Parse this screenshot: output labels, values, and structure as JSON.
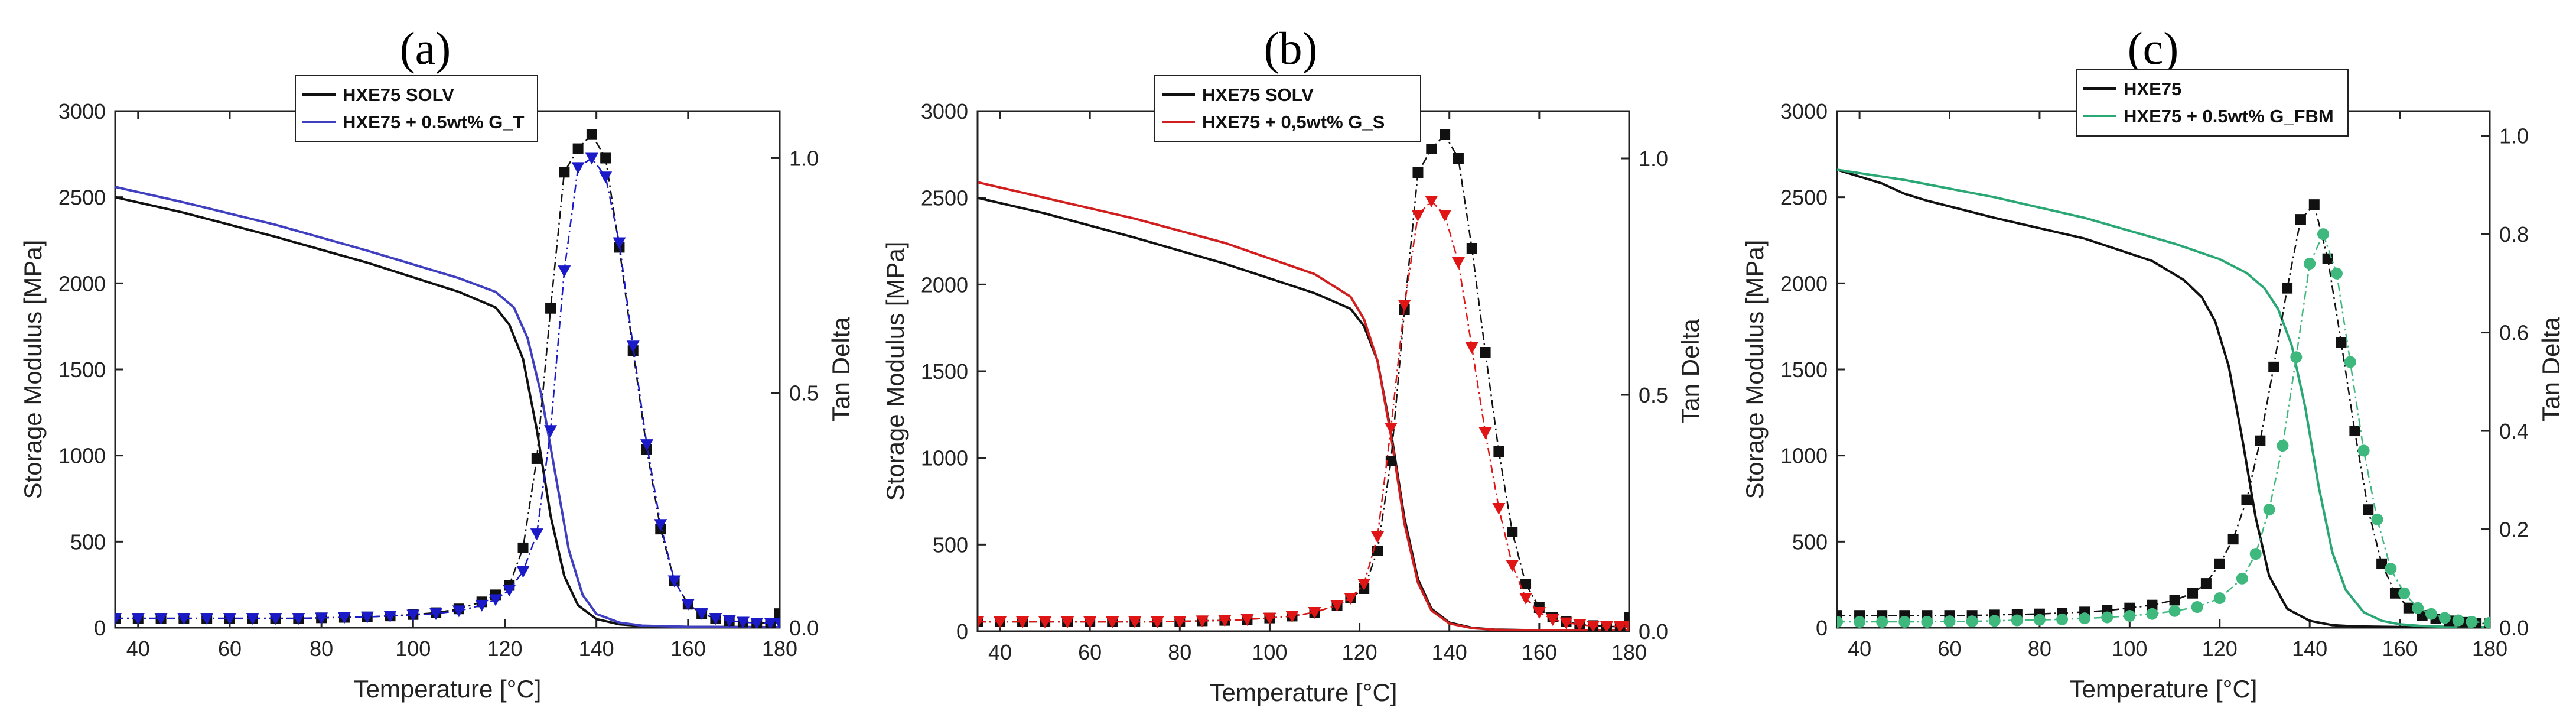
{
  "chart_data": [
    {
      "type": "line",
      "panel_label": "(a)",
      "xlabel": "Temperature [°C]",
      "ylabel": "Storage Modulus [MPa]",
      "y2label": "Tan Delta",
      "xlim": [
        35,
        180
      ],
      "ylim": [
        0,
        3000
      ],
      "y2lim": [
        0,
        1.1
      ],
      "xticks": [
        "40",
        "60",
        "80",
        "100",
        "120",
        "140",
        "160",
        "180"
      ],
      "yticks": [
        "0",
        "500",
        "1000",
        "1500",
        "2000",
        "2500",
        "3000"
      ],
      "y2ticks": [
        "0.0",
        "0.5",
        "1.0"
      ],
      "x_ticks": [
        40,
        60,
        80,
        100,
        120,
        140,
        160,
        180
      ],
      "y_ticks": [
        0,
        500,
        1000,
        1500,
        2000,
        2500,
        3000
      ],
      "y2_ticks": [
        0,
        0.5,
        1.0
      ],
      "legend": {
        "position": "top-center",
        "entries": [
          "HXE75 SOLV",
          "HXE75 + 0.5wt% G_T"
        ],
        "colors": [
          "#111111",
          "#3f3fbf"
        ]
      },
      "series": [
        {
          "name": "HXE75 SOLV",
          "axis": "left",
          "style": "line",
          "color": "#111111",
          "x": [
            35,
            50,
            70,
            90,
            110,
            118,
            121,
            124,
            127,
            130,
            133,
            136,
            140,
            145,
            150,
            160,
            180
          ],
          "values": [
            2500,
            2410,
            2270,
            2120,
            1950,
            1860,
            1760,
            1560,
            1150,
            650,
            300,
            130,
            50,
            20,
            10,
            5,
            3
          ]
        },
        {
          "name": "HXE75 + 0.5wt% G_T",
          "axis": "left",
          "style": "line",
          "color": "#3f3fbf",
          "x": [
            35,
            50,
            70,
            90,
            110,
            118,
            122,
            125,
            128,
            131,
            134,
            137,
            140,
            145,
            150,
            160,
            180
          ],
          "values": [
            2560,
            2470,
            2340,
            2190,
            2030,
            1950,
            1860,
            1680,
            1350,
            900,
            450,
            190,
            80,
            30,
            12,
            5,
            3
          ]
        },
        {
          "name": "HXE75 SOLV (tan δ)",
          "axis": "right",
          "style": "square-dashdot",
          "color": "#111111",
          "x": [
            35,
            40,
            45,
            50,
            55,
            60,
            65,
            70,
            75,
            80,
            85,
            90,
            95,
            100,
            105,
            110,
            115,
            118,
            121,
            124,
            127,
            130,
            133,
            136,
            139,
            142,
            145,
            148,
            151,
            154,
            157,
            160,
            163,
            166,
            169,
            172,
            175,
            178,
            180
          ],
          "values": [
            0.02,
            0.02,
            0.02,
            0.02,
            0.02,
            0.02,
            0.02,
            0.02,
            0.02,
            0.021,
            0.022,
            0.023,
            0.025,
            0.028,
            0.032,
            0.04,
            0.055,
            0.07,
            0.09,
            0.17,
            0.36,
            0.68,
            0.97,
            1.02,
            1.05,
            1.0,
            0.81,
            0.59,
            0.38,
            0.21,
            0.1,
            0.05,
            0.03,
            0.02,
            0.015,
            0.012,
            0.01,
            0.01,
            0.03
          ]
        },
        {
          "name": "HXE75 + 0.5wt% G_T (tan δ)",
          "axis": "right",
          "style": "triangle-dashdot",
          "color": "#1a1ac8",
          "x": [
            35,
            40,
            45,
            50,
            55,
            60,
            65,
            70,
            75,
            80,
            85,
            90,
            95,
            100,
            105,
            110,
            115,
            118,
            121,
            124,
            127,
            130,
            133,
            136,
            139,
            142,
            145,
            148,
            151,
            154,
            157,
            160,
            163,
            166,
            169,
            172,
            175,
            178,
            180
          ],
          "values": [
            0.02,
            0.02,
            0.02,
            0.02,
            0.02,
            0.02,
            0.02,
            0.02,
            0.02,
            0.021,
            0.022,
            0.023,
            0.025,
            0.027,
            0.03,
            0.036,
            0.048,
            0.06,
            0.08,
            0.12,
            0.2,
            0.42,
            0.76,
            0.98,
            1.0,
            0.96,
            0.82,
            0.6,
            0.39,
            0.22,
            0.1,
            0.05,
            0.03,
            0.02,
            0.015,
            0.012,
            0.01,
            0.01,
            0.01
          ]
        }
      ]
    },
    {
      "type": "line",
      "panel_label": "(b)",
      "xlabel": "Temperature [°C]",
      "ylabel": "Storage Modulus [MPa]",
      "y2label": "Tan Delta",
      "xlim": [
        35,
        180
      ],
      "ylim": [
        0,
        3000
      ],
      "y2lim": [
        0,
        1.1
      ],
      "xticks": [
        "40",
        "60",
        "80",
        "100",
        "120",
        "140",
        "160",
        "180"
      ],
      "yticks": [
        "0",
        "500",
        "1000",
        "1500",
        "2000",
        "2500",
        "3000"
      ],
      "y2ticks": [
        "0.0",
        "0.5",
        "1.0"
      ],
      "x_ticks": [
        40,
        60,
        80,
        100,
        120,
        140,
        160,
        180
      ],
      "y_ticks": [
        0,
        500,
        1000,
        1500,
        2000,
        2500,
        3000
      ],
      "y2_ticks": [
        0,
        0.5,
        1.0
      ],
      "legend": {
        "position": "top-center",
        "entries": [
          "HXE75 SOLV",
          "HXE75 + 0,5wt% G_S"
        ],
        "colors": [
          "#111111",
          "#d11f1f"
        ]
      },
      "series": [
        {
          "name": "HXE75 SOLV",
          "axis": "left",
          "style": "line",
          "color": "#111111",
          "x": [
            35,
            50,
            70,
            90,
            110,
            118,
            121,
            124,
            127,
            130,
            133,
            136,
            140,
            145,
            150,
            160,
            180
          ],
          "values": [
            2500,
            2410,
            2270,
            2120,
            1950,
            1860,
            1760,
            1560,
            1150,
            650,
            300,
            130,
            50,
            20,
            10,
            5,
            3
          ]
        },
        {
          "name": "HXE75 + 0,5wt% G_S",
          "axis": "left",
          "style": "line",
          "color": "#d11f1f",
          "x": [
            35,
            50,
            70,
            90,
            110,
            118,
            121,
            124,
            127,
            130,
            133,
            136,
            140,
            145,
            150,
            160,
            180
          ],
          "values": [
            2590,
            2500,
            2380,
            2240,
            2060,
            1930,
            1800,
            1560,
            1130,
            620,
            280,
            120,
            45,
            18,
            9,
            4,
            3
          ]
        },
        {
          "name": "HXE75 SOLV (tan δ)",
          "axis": "right",
          "style": "square-dashdot",
          "color": "#111111",
          "x": [
            35,
            40,
            45,
            50,
            55,
            60,
            65,
            70,
            75,
            80,
            85,
            90,
            95,
            100,
            105,
            110,
            115,
            118,
            121,
            124,
            127,
            130,
            133,
            136,
            139,
            142,
            145,
            148,
            151,
            154,
            157,
            160,
            163,
            166,
            169,
            172,
            175,
            178,
            180
          ],
          "values": [
            0.02,
            0.02,
            0.02,
            0.02,
            0.02,
            0.02,
            0.02,
            0.02,
            0.02,
            0.021,
            0.022,
            0.023,
            0.025,
            0.028,
            0.032,
            0.04,
            0.055,
            0.07,
            0.09,
            0.17,
            0.36,
            0.68,
            0.97,
            1.02,
            1.05,
            1.0,
            0.81,
            0.59,
            0.38,
            0.21,
            0.1,
            0.05,
            0.03,
            0.02,
            0.015,
            0.012,
            0.01,
            0.01,
            0.03
          ]
        },
        {
          "name": "HXE75 + 0,5wt% G_S (tan δ)",
          "axis": "right",
          "style": "triangle-dashdot",
          "color": "#e01515",
          "x": [
            35,
            40,
            45,
            50,
            55,
            60,
            65,
            70,
            75,
            80,
            85,
            90,
            95,
            100,
            105,
            110,
            115,
            118,
            121,
            124,
            127,
            130,
            133,
            136,
            139,
            142,
            145,
            148,
            151,
            154,
            157,
            160,
            163,
            166,
            169,
            172,
            175,
            178,
            180
          ],
          "values": [
            0.02,
            0.02,
            0.02,
            0.02,
            0.02,
            0.02,
            0.02,
            0.02,
            0.02,
            0.021,
            0.022,
            0.023,
            0.025,
            0.028,
            0.032,
            0.04,
            0.055,
            0.07,
            0.1,
            0.2,
            0.43,
            0.69,
            0.88,
            0.91,
            0.88,
            0.78,
            0.6,
            0.42,
            0.26,
            0.14,
            0.07,
            0.04,
            0.025,
            0.018,
            0.014,
            0.011,
            0.01,
            0.01,
            0.01
          ]
        }
      ]
    },
    {
      "type": "line",
      "panel_label": "(c)",
      "xlabel": "Temperature [°C]",
      "ylabel": "Storage Modulus [MPa]",
      "y2label": "Tan Delta",
      "xlim": [
        35,
        180
      ],
      "ylim": [
        0,
        3000
      ],
      "y2lim": [
        0,
        1.05
      ],
      "xticks": [
        "40",
        "60",
        "80",
        "100",
        "120",
        "140",
        "160",
        "180"
      ],
      "yticks": [
        "0",
        "500",
        "1000",
        "1500",
        "2000",
        "2500",
        "3000"
      ],
      "y2ticks": [
        "0.0",
        "0.2",
        "0.4",
        "0.6",
        "0.8",
        "1.0"
      ],
      "x_ticks": [
        40,
        60,
        80,
        100,
        120,
        140,
        160,
        180
      ],
      "y_ticks": [
        0,
        500,
        1000,
        1500,
        2000,
        2500,
        3000
      ],
      "y2_ticks": [
        0,
        0.2,
        0.4,
        0.6,
        0.8,
        1.0
      ],
      "legend": {
        "position": "top-center",
        "entries": [
          "HXE75",
          "HXE75 + 0.5wt% G_FBM"
        ],
        "colors": [
          "#111111",
          "#2aa775"
        ]
      },
      "series": [
        {
          "name": "HXE75",
          "axis": "left",
          "style": "line",
          "color": "#111111",
          "x": [
            35,
            45,
            50,
            55,
            70,
            90,
            105,
            112,
            116,
            119,
            122,
            125,
            128,
            131,
            135,
            140,
            145,
            150,
            160,
            180
          ],
          "values": [
            2660,
            2580,
            2520,
            2480,
            2380,
            2260,
            2130,
            2020,
            1920,
            1780,
            1520,
            1100,
            640,
            300,
            110,
            40,
            15,
            8,
            4,
            3
          ]
        },
        {
          "name": "HXE75 + 0.5wt% G_FBM",
          "axis": "left",
          "style": "line",
          "color": "#2aa775",
          "x": [
            35,
            50,
            70,
            90,
            110,
            120,
            126,
            130,
            133,
            136,
            139,
            142,
            145,
            148,
            152,
            156,
            160,
            165,
            170,
            180
          ],
          "values": [
            2660,
            2600,
            2500,
            2380,
            2230,
            2140,
            2060,
            1970,
            1850,
            1640,
            1280,
            820,
            440,
            220,
            90,
            40,
            20,
            10,
            6,
            3
          ]
        },
        {
          "name": "HXE75 (tan δ)",
          "axis": "right",
          "style": "square-dashdot",
          "color": "#111111",
          "x": [
            35,
            40,
            45,
            50,
            55,
            60,
            65,
            70,
            75,
            80,
            85,
            90,
            95,
            100,
            105,
            110,
            114,
            117,
            120,
            123,
            126,
            129,
            132,
            135,
            138,
            141,
            144,
            147,
            150,
            153,
            156,
            159,
            162,
            165,
            168,
            171,
            174,
            177,
            180
          ],
          "values": [
            0.025,
            0.025,
            0.025,
            0.025,
            0.025,
            0.025,
            0.025,
            0.026,
            0.027,
            0.028,
            0.03,
            0.032,
            0.035,
            0.04,
            0.046,
            0.056,
            0.07,
            0.09,
            0.13,
            0.18,
            0.26,
            0.38,
            0.53,
            0.69,
            0.83,
            0.86,
            0.75,
            0.58,
            0.4,
            0.24,
            0.13,
            0.07,
            0.04,
            0.025,
            0.018,
            0.014,
            0.011,
            0.009,
            0.008
          ]
        },
        {
          "name": "HXE75 + 0.5wt% G_FBM (tan δ)",
          "axis": "right",
          "style": "circle-dashdot",
          "color": "#3fb87e",
          "x": [
            35,
            40,
            45,
            50,
            55,
            60,
            65,
            70,
            75,
            80,
            85,
            90,
            95,
            100,
            105,
            110,
            115,
            120,
            125,
            128,
            131,
            134,
            137,
            140,
            143,
            146,
            149,
            152,
            155,
            158,
            161,
            164,
            167,
            170,
            173,
            176,
            180
          ],
          "values": [
            0.012,
            0.012,
            0.012,
            0.012,
            0.012,
            0.013,
            0.013,
            0.014,
            0.015,
            0.016,
            0.017,
            0.019,
            0.021,
            0.024,
            0.028,
            0.034,
            0.042,
            0.06,
            0.1,
            0.15,
            0.24,
            0.37,
            0.55,
            0.74,
            0.8,
            0.72,
            0.54,
            0.36,
            0.22,
            0.12,
            0.07,
            0.04,
            0.028,
            0.02,
            0.015,
            0.012,
            0.01
          ]
        }
      ]
    }
  ]
}
